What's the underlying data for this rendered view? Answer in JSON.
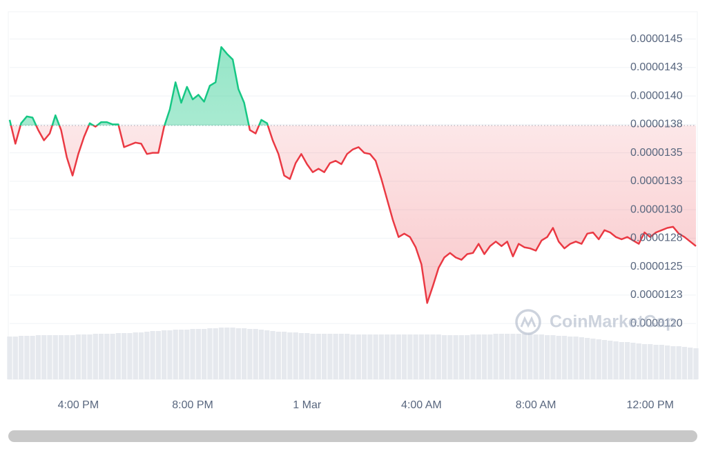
{
  "chart_data": {
    "type": "line",
    "watermark": "CoinMarketCap",
    "baseline": 1.374e-05,
    "xlim": [
      0,
      120
    ],
    "xticks": [
      {
        "value": 12,
        "label": "4:00 PM"
      },
      {
        "value": 32,
        "label": "8:00 PM"
      },
      {
        "value": 52,
        "label": "1 Mar"
      },
      {
        "value": 72,
        "label": "4:00 AM"
      },
      {
        "value": 92,
        "label": "8:00 AM"
      },
      {
        "value": 112,
        "label": "12:00 PM"
      }
    ],
    "ylim": [
      1.151e-05,
      1.474e-05
    ],
    "yticks": [
      {
        "value": 1.45e-05,
        "label": "0.0000145"
      },
      {
        "value": 1.425e-05,
        "label": "0.0000143"
      },
      {
        "value": 1.4e-05,
        "label": "0.0000140"
      },
      {
        "value": 1.375e-05,
        "label": "0.0000138"
      },
      {
        "value": 1.35e-05,
        "label": "0.0000135"
      },
      {
        "value": 1.325e-05,
        "label": "0.0000133"
      },
      {
        "value": 1.3e-05,
        "label": "0.0000130"
      },
      {
        "value": 1.275e-05,
        "label": "0.0000128"
      },
      {
        "value": 1.25e-05,
        "label": "0.0000125"
      },
      {
        "value": 1.225e-05,
        "label": "0.0000123"
      },
      {
        "value": 1.2e-05,
        "label": "0.0000120"
      }
    ],
    "grid": true,
    "up_color": "#16c784",
    "down_color": "#ea3943",
    "values": [
      1.379e-05,
      1.358e-05,
      1.376e-05,
      1.382e-05,
      1.381e-05,
      1.37e-05,
      1.361e-05,
      1.367e-05,
      1.383e-05,
      1.37e-05,
      1.346e-05,
      1.33e-05,
      1.349e-05,
      1.364e-05,
      1.376e-05,
      1.373e-05,
      1.377e-05,
      1.377e-05,
      1.375e-05,
      1.375e-05,
      1.355e-05,
      1.357e-05,
      1.359e-05,
      1.358e-05,
      1.349e-05,
      1.35e-05,
      1.35e-05,
      1.373e-05,
      1.388e-05,
      1.412e-05,
      1.394e-05,
      1.408e-05,
      1.397e-05,
      1.401e-05,
      1.395e-05,
      1.409e-05,
      1.412e-05,
      1.443e-05,
      1.437e-05,
      1.432e-05,
      1.406e-05,
      1.394e-05,
      1.37e-05,
      1.367e-05,
      1.379e-05,
      1.376e-05,
      1.361e-05,
      1.349e-05,
      1.33e-05,
      1.327e-05,
      1.341e-05,
      1.349e-05,
      1.34e-05,
      1.333e-05,
      1.336e-05,
      1.333e-05,
      1.341e-05,
      1.343e-05,
      1.34e-05,
      1.349e-05,
      1.353e-05,
      1.355e-05,
      1.35e-05,
      1.349e-05,
      1.343e-05,
      1.327e-05,
      1.309e-05,
      1.291e-05,
      1.276e-05,
      1.279e-05,
      1.276e-05,
      1.267e-05,
      1.252e-05,
      1.218e-05,
      1.233e-05,
      1.249e-05,
      1.258e-05,
      1.262e-05,
      1.258e-05,
      1.256e-05,
      1.261e-05,
      1.262e-05,
      1.27e-05,
      1.261e-05,
      1.268e-05,
      1.272e-05,
      1.268e-05,
      1.272e-05,
      1.259e-05,
      1.27e-05,
      1.267e-05,
      1.266e-05,
      1.264e-05,
      1.273e-05,
      1.276e-05,
      1.284e-05,
      1.272e-05,
      1.266e-05,
      1.27e-05,
      1.272e-05,
      1.27e-05,
      1.279e-05,
      1.28e-05,
      1.274e-05,
      1.282e-05,
      1.28e-05,
      1.276e-05,
      1.274e-05,
      1.276e-05,
      1.273e-05,
      1.27e-05,
      1.28e-05,
      1.276e-05,
      1.28e-05,
      1.282e-05,
      1.284e-05,
      1.285e-05,
      1.279e-05,
      1.276e-05,
      1.272e-05,
      1.268e-05
    ],
    "volume_lim": [
      0,
      100
    ],
    "volume_color": "#e6e9ee",
    "volume": [
      62,
      62,
      63,
      63,
      63,
      64,
      64,
      64,
      64,
      64,
      64,
      64,
      65,
      65,
      65,
      66,
      66,
      66,
      66,
      67,
      67,
      67,
      68,
      68,
      69,
      70,
      70,
      71,
      71,
      72,
      72,
      72,
      73,
      73,
      73,
      74,
      74,
      75,
      75,
      75,
      74,
      74,
      73,
      73,
      72,
      71,
      70,
      69,
      69,
      68,
      68,
      67,
      67,
      66,
      66,
      66,
      66,
      66,
      66,
      66,
      65,
      65,
      65,
      65,
      65,
      65,
      65,
      65,
      65,
      65,
      65,
      65,
      65,
      65,
      65,
      65,
      64,
      64,
      64,
      64,
      64,
      65,
      65,
      65,
      65,
      66,
      66,
      66,
      66,
      66,
      66,
      66,
      65,
      65,
      64,
      64,
      63,
      63,
      62,
      62,
      61,
      60,
      59,
      58,
      57,
      56,
      55,
      54,
      54,
      53,
      52,
      51,
      51,
      50,
      50,
      49,
      48,
      48,
      47,
      46,
      45
    ]
  }
}
